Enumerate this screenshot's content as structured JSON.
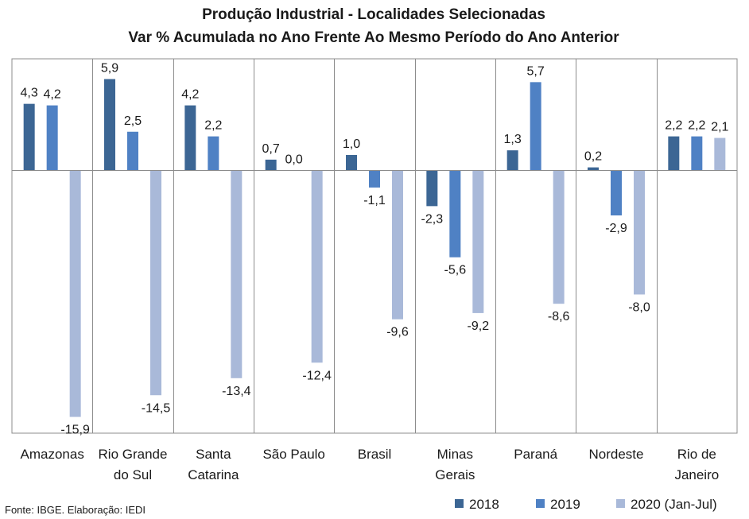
{
  "chart_data": {
    "type": "bar",
    "title": "Produção Industrial - Localidades Selecionadas",
    "subtitle": "Var % Acumulada no Ano Frente Ao Mesmo Período do Ano Anterior",
    "categories": [
      [
        "Amazonas"
      ],
      [
        "Rio Grande",
        "do Sul"
      ],
      [
        "Santa",
        "Catarina"
      ],
      [
        "São Paulo"
      ],
      [
        "Brasil"
      ],
      [
        "Minas",
        "Gerais"
      ],
      [
        "Paraná"
      ],
      [
        "Nordeste"
      ],
      [
        "Rio de",
        "Janeiro"
      ]
    ],
    "series": [
      {
        "name": "2018",
        "color": "#3c6694",
        "values": [
          4.3,
          5.9,
          4.2,
          0.7,
          1.0,
          -2.3,
          1.3,
          0.2,
          2.2
        ],
        "labels": [
          "4,3",
          "5,9",
          "4,2",
          "0,7",
          "1,0",
          "-2,3",
          "1,3",
          "0,2",
          "2,2"
        ]
      },
      {
        "name": "2019",
        "color": "#4f81c4",
        "values": [
          4.2,
          2.5,
          2.2,
          0.0,
          -1.1,
          -5.6,
          5.7,
          -2.9,
          2.2
        ],
        "labels": [
          "4,2",
          "2,5",
          "2,2",
          "0,0",
          "-1,1",
          "-5,6",
          "5,7",
          "-2,9",
          "2,2"
        ]
      },
      {
        "name": "2020 (Jan-Jul)",
        "color": "#a9b9d9",
        "values": [
          -15.9,
          -14.5,
          -13.4,
          -12.4,
          -9.6,
          -9.2,
          -8.6,
          -8.0,
          2.1
        ],
        "labels": [
          "-15,9",
          "-14,5",
          "-13,4",
          "-12,4",
          "-9,6",
          "-9,2",
          "-8,6",
          "-8,0",
          "2,1"
        ]
      }
    ],
    "ylim": [
      -16.5,
      7.5
    ],
    "grid": false,
    "legend": "bottom-right"
  },
  "source": "Fonte: IBGE. Elaboração: IEDI"
}
